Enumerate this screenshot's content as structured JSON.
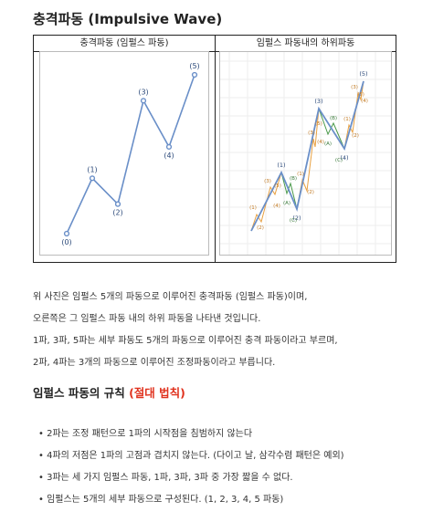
{
  "header": {
    "title": "충격파동 (Impulsive Wave)"
  },
  "figure": {
    "left_caption": "충격파동 (임펄스 파동)",
    "right_caption": "임펄스 파동내의 하위파동",
    "left_chart": {
      "points": [
        {
          "label": "(0)",
          "value": 0
        },
        {
          "label": "(1)",
          "value": 3
        },
        {
          "label": "(2)",
          "value": 1.6
        },
        {
          "label": "(3)",
          "value": 7.2
        },
        {
          "label": "(4)",
          "value": 4.7
        },
        {
          "label": "(5)",
          "value": 8.6
        }
      ],
      "line_color": "#6a8fc8"
    },
    "right_chart": {
      "main_labels": [
        "(1)",
        "(2)",
        "(3)",
        "(4)",
        "(5)"
      ],
      "impulse_sub_labels": [
        "(1)",
        "(2)",
        "(3)",
        "(4)",
        "(5)"
      ],
      "corrective_sub_labels": [
        "(A)",
        "(B)",
        "(C)"
      ],
      "main_color": "#6a8fc8",
      "impulse_sub_color": "#e8a040",
      "corrective_sub_color": "#4a9a4a"
    }
  },
  "paragraphs": [
    "위 사진은 임펄스 5개의 파동으로 이루어진 충격파동 (임펄스 파동)이며,",
    "오른쪽은 그 임펄스 파동 내의 하위 파동을 나타낸 것입니다.",
    "1파, 3파, 5파는 세부 파동도 5개의 파동으로 이루어진 충격 파동이라고 부르며,",
    "2파, 4파는 3개의 파동으로 이루어진 조정파동이라고 부릅니다."
  ],
  "rules": {
    "title": "임펄스 파동의 규칙",
    "title_emphasis": "(절대 법칙)",
    "items": [
      "• 2파는 조정 패턴으로 1파의 시작점을 침범하지 않는다",
      "• 4파의 저점은 1파의 고점과 겹치지 않는다. (다이고 날, 삼각수렴 패턴은 예외)",
      "• 3파는 세 가지 임펄스 파동, 1파, 3파, 3파 중 가장 짧을 수 없다.",
      "• 임펄스는 5개의 세부 파동으로 구성된다. (1, 2, 3, 4, 5 파동)"
    ]
  }
}
